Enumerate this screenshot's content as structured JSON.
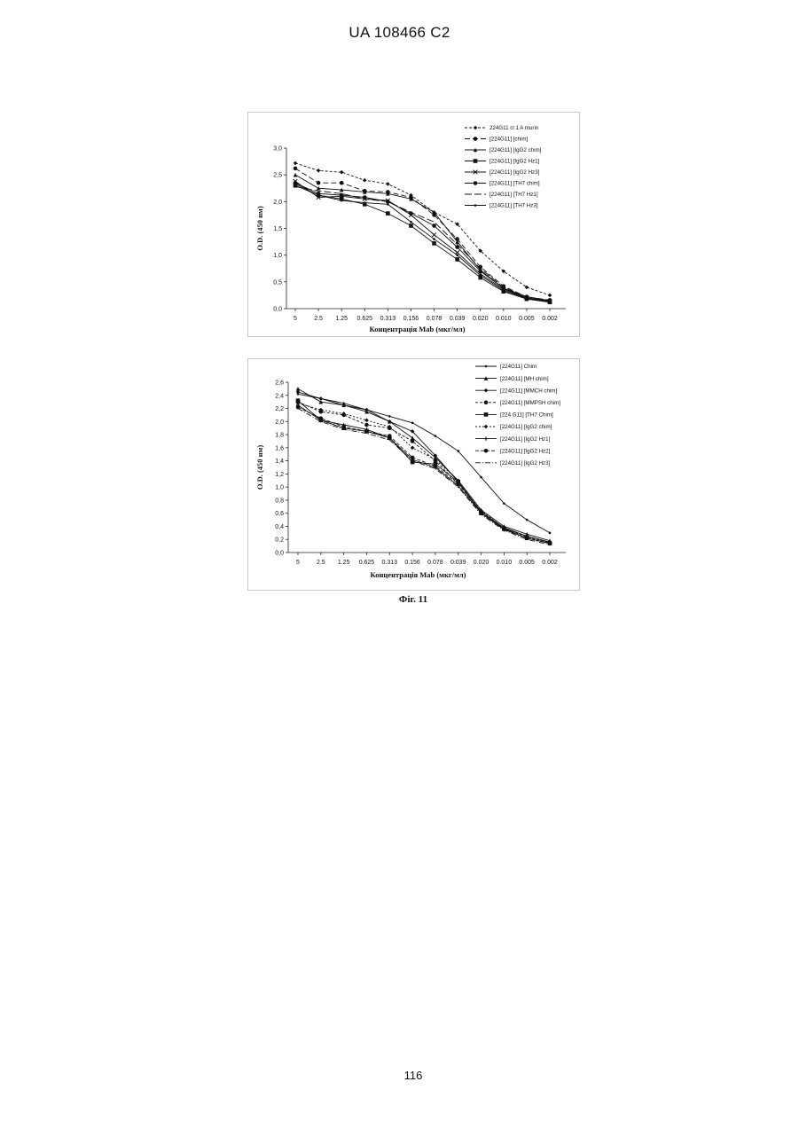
{
  "header": {
    "patent_id": "UA   108466   C2"
  },
  "figure": {
    "caption": "Фіг. 11"
  },
  "page": {
    "number": "116"
  },
  "chart_data": [
    {
      "type": "line",
      "xlabel": "Концентрація Mab (мкг/мл)",
      "ylabel": "O.D. (450 нм)",
      "ylim": [
        0,
        3.0
      ],
      "yticks": [
        "0,0",
        "0,5",
        "1,0",
        "1,5",
        "2,0",
        "2,5",
        "3,0"
      ],
      "yticks_values": [
        0,
        0.5,
        1.0,
        1.5,
        2.0,
        2.5,
        3.0
      ],
      "categories": [
        "5",
        "2.5",
        "1.25",
        "0.625",
        "0.313",
        "0.156",
        "0.078",
        "0.039",
        "0.020",
        "0.010",
        "0.005",
        "0.002"
      ],
      "legend_position": "top-right",
      "series": [
        {
          "name": "224G11 cl 1 A murin",
          "marker": "diamond",
          "dash": "3,2",
          "values": [
            2.72,
            2.58,
            2.55,
            2.4,
            2.33,
            2.12,
            1.8,
            1.58,
            1.08,
            0.7,
            0.4,
            0.25
          ]
        },
        {
          "name": "[224G11] [chim]",
          "marker": "circle",
          "dash": "6,3",
          "values": [
            2.62,
            2.35,
            2.35,
            2.2,
            2.18,
            2.08,
            1.75,
            1.3,
            0.78,
            0.42,
            0.22,
            0.16
          ]
        },
        {
          "name": "[224G11] [IgG2 chim]",
          "marker": "triangle",
          "dash": "",
          "values": [
            2.5,
            2.25,
            2.22,
            2.18,
            2.15,
            2.05,
            1.8,
            1.25,
            0.72,
            0.38,
            0.2,
            0.14
          ]
        },
        {
          "name": "[224G11] [IgG2 Hz1]",
          "marker": "square",
          "dash": "",
          "values": [
            2.3,
            2.12,
            2.05,
            1.95,
            1.78,
            1.55,
            1.22,
            0.92,
            0.58,
            0.32,
            0.18,
            0.12
          ]
        },
        {
          "name": "[224G11] [IgG2 Hz3]",
          "marker": "x",
          "dash": "",
          "values": [
            2.38,
            2.08,
            2.1,
            2.05,
            2.02,
            1.75,
            1.38,
            1.05,
            0.65,
            0.36,
            0.2,
            0.14
          ]
        },
        {
          "name": "[224G11] [TH7 chim]",
          "marker": "circle",
          "dash": "",
          "values": [
            2.35,
            2.15,
            2.12,
            2.08,
            2.0,
            1.78,
            1.55,
            1.15,
            0.7,
            0.38,
            0.22,
            0.15
          ]
        },
        {
          "name": "[224G11] [TH7 Hz1]",
          "marker": "none",
          "dash": "8,3",
          "values": [
            2.28,
            2.2,
            2.15,
            2.05,
            2.0,
            1.8,
            1.62,
            1.2,
            0.75,
            0.4,
            0.22,
            0.15
          ]
        },
        {
          "name": "[224G11] [TH7 Hz3]",
          "marker": "dot",
          "dash": "",
          "values": [
            2.33,
            2.12,
            2.02,
            1.98,
            1.95,
            1.62,
            1.3,
            1.0,
            0.62,
            0.34,
            0.19,
            0.13
          ]
        }
      ]
    },
    {
      "type": "line",
      "xlabel": "Концентрація Mab (мкг/мл)",
      "ylabel": "O.D. (450 нм)",
      "ylim": [
        0,
        2.6
      ],
      "yticks": [
        "0,0",
        "0,2",
        "0,4",
        "0,6",
        "0,8",
        "1,0",
        "1,2",
        "1,4",
        "1,6",
        "1,8",
        "2,0",
        "2,2",
        "2,4",
        "2,6"
      ],
      "yticks_values": [
        0,
        0.2,
        0.4,
        0.6,
        0.8,
        1.0,
        1.2,
        1.4,
        1.6,
        1.8,
        2.0,
        2.2,
        2.4,
        2.6
      ],
      "categories": [
        "5",
        "2.5",
        "1.25",
        "0.625",
        "0.313",
        "0.156",
        "0.078",
        "0.039",
        "0.020",
        "0.010",
        "0.005",
        "0.002"
      ],
      "legend_position": "top-right",
      "series": [
        {
          "name": "[224G11] Chim",
          "marker": "dot",
          "dash": "",
          "values": [
            2.42,
            2.35,
            2.28,
            2.18,
            2.08,
            1.98,
            1.78,
            1.55,
            1.15,
            0.75,
            0.5,
            0.3
          ]
        },
        {
          "name": "[224G11] [MH chim]",
          "marker": "triangle",
          "dash": "",
          "values": [
            2.5,
            2.3,
            2.25,
            2.15,
            2.0,
            1.75,
            1.45,
            1.1,
            0.65,
            0.4,
            0.28,
            0.18
          ]
        },
        {
          "name": "[224G11] [MMCH chim]",
          "marker": "diamond",
          "dash": "",
          "values": [
            2.45,
            2.35,
            2.25,
            2.18,
            2.0,
            1.85,
            1.48,
            1.08,
            0.62,
            0.38,
            0.25,
            0.16
          ]
        },
        {
          "name": "[224G11] [MMPSH chim]",
          "marker": "circle",
          "dash": "3,2",
          "values": [
            2.3,
            2.15,
            2.1,
            1.95,
            1.9,
            1.7,
            1.4,
            1.05,
            0.62,
            0.37,
            0.24,
            0.15
          ]
        },
        {
          "name": "[224 G11] [TH7 Chim]",
          "marker": "square",
          "dash": "",
          "values": [
            2.32,
            2.02,
            1.9,
            1.85,
            1.75,
            1.38,
            1.35,
            1.08,
            0.6,
            0.36,
            0.22,
            0.14
          ]
        },
        {
          "name": "[224G11] [IgG2 chim]",
          "marker": "diamond",
          "dash": "2,2",
          "values": [
            2.28,
            2.18,
            2.12,
            2.02,
            1.92,
            1.6,
            1.42,
            1.1,
            0.64,
            0.37,
            0.24,
            0.16
          ]
        },
        {
          "name": "[224G11] [IgG2 Hz1]",
          "marker": "plus",
          "dash": "",
          "values": [
            2.25,
            2.02,
            1.95,
            1.88,
            1.75,
            1.42,
            1.3,
            1.02,
            0.6,
            0.35,
            0.22,
            0.14
          ]
        },
        {
          "name": "[224G11] [IgG2 Hz2]",
          "marker": "circle",
          "dash": "4,2",
          "values": [
            2.22,
            2.05,
            1.92,
            1.85,
            1.78,
            1.45,
            1.32,
            1.05,
            0.62,
            0.36,
            0.22,
            0.14
          ]
        },
        {
          "name": "[224G11] [IgG2 Hz3]",
          "marker": "none",
          "dash": "6,2,1,2",
          "values": [
            2.2,
            2.0,
            1.88,
            1.82,
            1.72,
            1.4,
            1.28,
            1.0,
            0.58,
            0.34,
            0.2,
            0.12
          ]
        }
      ]
    }
  ]
}
